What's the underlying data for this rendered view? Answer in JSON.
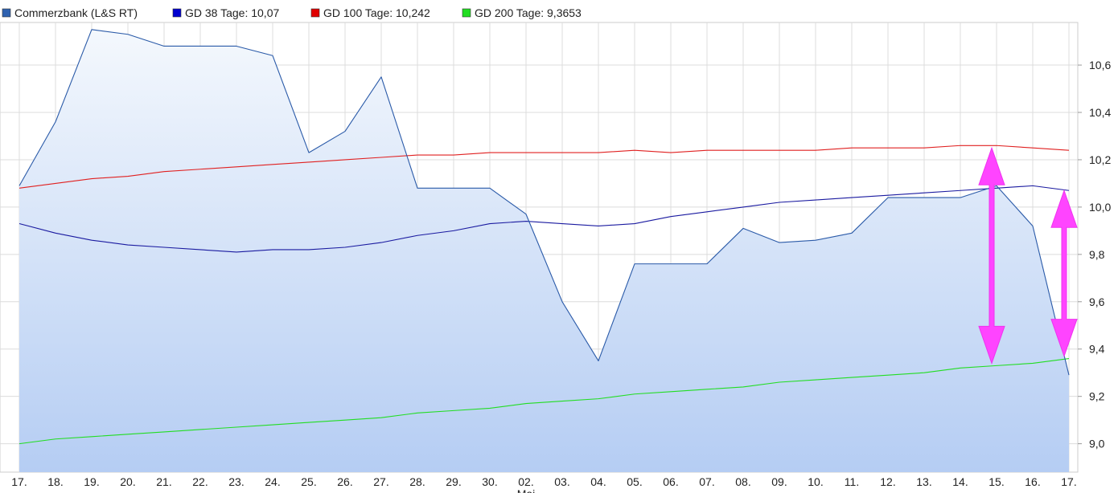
{
  "chart_data": {
    "type": "line",
    "legend_placement": "top-left",
    "grid": true,
    "x_tick_labels": [
      "17.",
      "18.",
      "19.",
      "20.",
      "21.",
      "22.",
      "23.",
      "24.",
      "25.",
      "26.",
      "27.",
      "28.",
      "29.",
      "30.",
      "02.",
      "03.",
      "04.",
      "05.",
      "06.",
      "07.",
      "08.",
      "09.",
      "10.",
      "11.",
      "12.",
      "13.",
      "14.",
      "15.",
      "16.",
      "17."
    ],
    "x_group_label": "Mai",
    "y_ticks": [
      "9,0",
      "9,2",
      "9,4",
      "9,6",
      "9,8",
      "10,0",
      "10,2",
      "10,4",
      "10,6"
    ],
    "ylim": [
      8.88,
      10.78
    ],
    "series": [
      {
        "name": "Commerzbank (L&S RT)",
        "color": "#2a5aa8",
        "legend_swatch": "#2f62b0",
        "area": true,
        "values": [
          10.09,
          10.36,
          10.75,
          10.73,
          10.68,
          10.68,
          10.68,
          10.64,
          10.23,
          10.32,
          10.55,
          10.08,
          10.08,
          10.08,
          9.97,
          9.6,
          9.35,
          9.76,
          9.76,
          9.76,
          9.91,
          9.85,
          9.86,
          9.89,
          10.04,
          10.04,
          10.04,
          10.09,
          9.92,
          9.29
        ]
      },
      {
        "name": "GD 38 Tage: 10,07",
        "color": "#1a1aa0",
        "legend_swatch": "#0000d0",
        "values": [
          9.93,
          9.89,
          9.86,
          9.84,
          9.83,
          9.82,
          9.81,
          9.82,
          9.82,
          9.83,
          9.85,
          9.88,
          9.9,
          9.93,
          9.94,
          9.93,
          9.92,
          9.93,
          9.96,
          9.98,
          10.0,
          10.02,
          10.03,
          10.04,
          10.05,
          10.06,
          10.07,
          10.08,
          10.09,
          10.07
        ]
      },
      {
        "name": "GD 100 Tage: 10,242",
        "color": "#e02020",
        "legend_swatch": "#e00000",
        "values": [
          10.08,
          10.1,
          10.12,
          10.13,
          10.15,
          10.16,
          10.17,
          10.18,
          10.19,
          10.2,
          10.21,
          10.22,
          10.22,
          10.23,
          10.23,
          10.23,
          10.23,
          10.24,
          10.23,
          10.24,
          10.24,
          10.24,
          10.24,
          10.25,
          10.25,
          10.25,
          10.26,
          10.26,
          10.25,
          10.24
        ]
      },
      {
        "name": "GD 200 Tage: 9,3653",
        "color": "#22dd22",
        "legend_swatch": "#22dd22",
        "values": [
          9.0,
          9.02,
          9.03,
          9.04,
          9.05,
          9.06,
          9.07,
          9.08,
          9.09,
          9.1,
          9.11,
          9.13,
          9.14,
          9.15,
          9.17,
          9.18,
          9.19,
          9.21,
          9.22,
          9.23,
          9.24,
          9.26,
          9.27,
          9.28,
          9.29,
          9.3,
          9.32,
          9.33,
          9.34,
          9.36
        ]
      }
    ],
    "annotations": [
      {
        "type": "double-arrow",
        "color": "#ff44ff",
        "x_index": 27,
        "from": 10.25,
        "to": 9.34
      },
      {
        "type": "double-arrow",
        "color": "#ff44ff",
        "x_index": 29,
        "from": 10.07,
        "to": 9.37
      }
    ]
  }
}
